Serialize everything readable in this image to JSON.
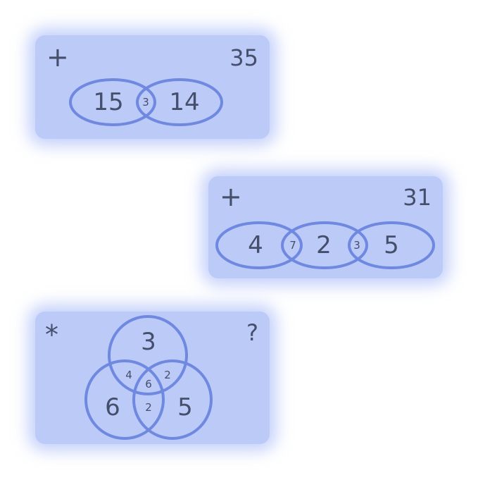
{
  "puzzles": [
    {
      "operator": "+",
      "result": "35",
      "regions": [
        "15",
        "14"
      ],
      "overlaps": [
        "3"
      ]
    },
    {
      "operator": "+",
      "result": "31",
      "regions": [
        "4",
        "2",
        "5"
      ],
      "overlaps": [
        "7",
        "3"
      ]
    },
    {
      "operator": "*",
      "result": "?",
      "regions": [
        "3",
        "6",
        "5"
      ],
      "overlaps": [
        "4",
        "2",
        "2",
        "6"
      ]
    }
  ],
  "colors": {
    "card_fill": "#bccaf8",
    "ring_stroke": "#6f88e0",
    "text": "#454e6b"
  }
}
